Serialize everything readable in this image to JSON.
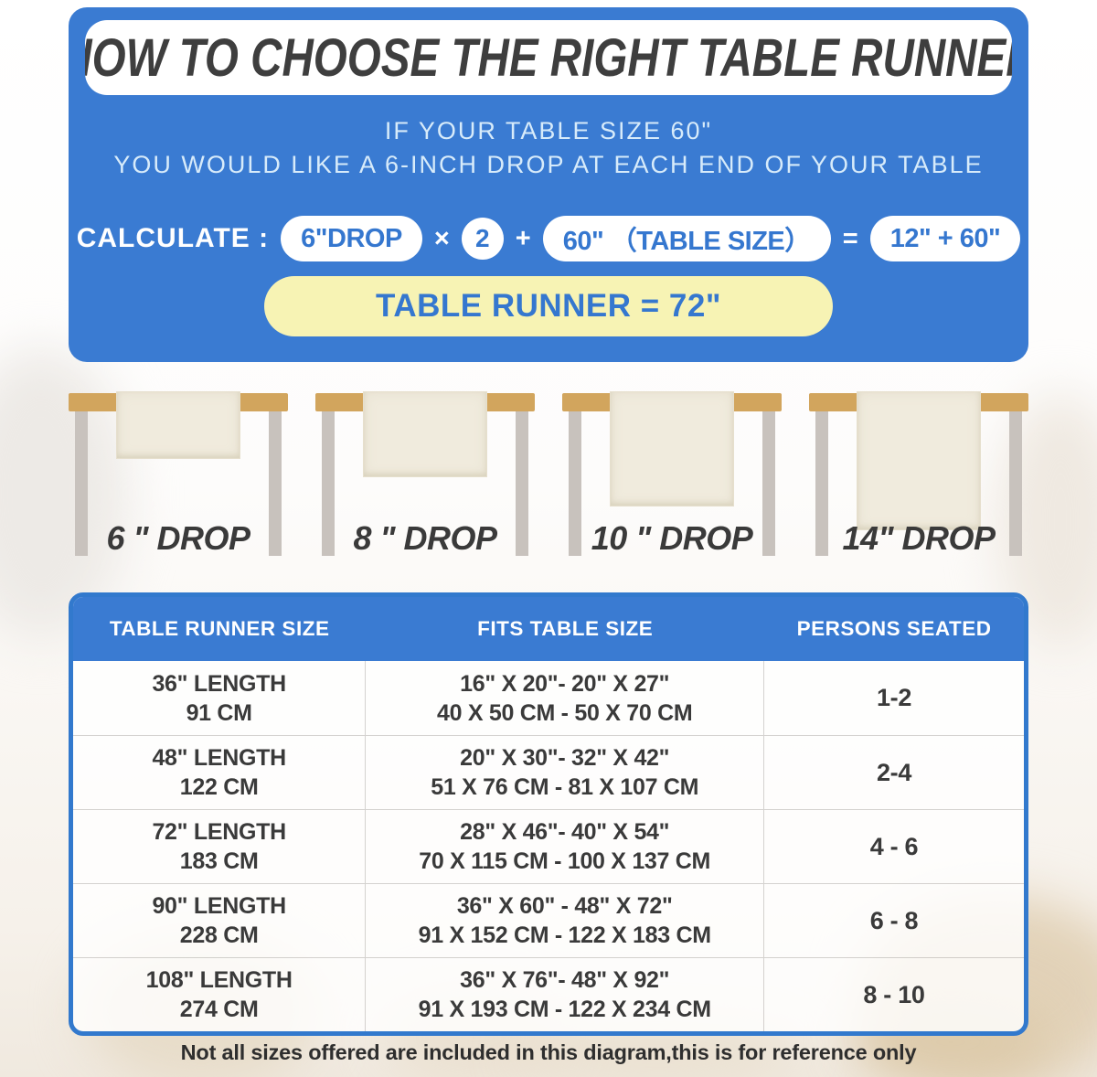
{
  "header": {
    "title": "HOW TO CHOOSE THE RIGHT TABLE RUNNER",
    "subtitle_line1": "IF YOUR TABLE SIZE 60\"",
    "subtitle_line2": "YOU WOULD LIKE A 6-INCH DROP AT EACH END OF YOUR TABLE"
  },
  "calculate": {
    "label": "CALCULATE :",
    "drop_pill": "6\"DROP",
    "times": "×",
    "multiplier": "2",
    "plus": "+",
    "table_size_pill": "60\" （TABLE SIZE）",
    "equals": "=",
    "result_pill": "12\" + 60\"",
    "runner_total": "TABLE RUNNER = 72\""
  },
  "drops": {
    "items": [
      {
        "label": "6 \" DROP",
        "drop_inches": 6
      },
      {
        "label": "8 \" DROP",
        "drop_inches": 8
      },
      {
        "label": "10 \" DROP",
        "drop_inches": 10
      },
      {
        "label": "14\" DROP",
        "drop_inches": 14
      }
    ]
  },
  "size_table": {
    "headers": [
      "TABLE RUNNER SIZE",
      "FITS TABLE SIZE",
      "PERSONS SEATED"
    ],
    "rows": [
      {
        "runner": [
          "36\" LENGTH",
          "91 CM"
        ],
        "fits": [
          "16\" X 20\"- 20\" X 27\"",
          "40 X 50 CM - 50 X 70 CM"
        ],
        "persons": "1-2"
      },
      {
        "runner": [
          "48\" LENGTH",
          "122 CM"
        ],
        "fits": [
          "20\" X 30\"- 32\" X 42\"",
          "51 X 76 CM - 81 X 107 CM"
        ],
        "persons": "2-4"
      },
      {
        "runner": [
          "72\" LENGTH",
          "183 CM"
        ],
        "fits": [
          "28\" X 46\"- 40\" X 54\"",
          "70 X 115 CM - 100 X 137 CM"
        ],
        "persons": "4 - 6"
      },
      {
        "runner": [
          "90\" LENGTH",
          "228 CM"
        ],
        "fits": [
          "36\" X 60\" - 48\" X 72\"",
          "91 X 152 CM - 122 X 183 CM"
        ],
        "persons": "6 - 8"
      },
      {
        "runner": [
          "108\" LENGTH",
          "274 CM"
        ],
        "fits": [
          "36\" X 76\"- 48\" X 92\"",
          "91 X 193 CM - 122 X 234 CM"
        ],
        "persons": "8 - 10"
      }
    ]
  },
  "footnote": "Not all sizes offered are included in this diagram,this is for reference only",
  "colors": {
    "accent_blue": "#3a7bd2",
    "pale_blue_text": "#d7ebfa",
    "highlight_yellow": "#f7f3b4",
    "wood_tan": "#d2a55d",
    "leg_gray": "#c8c2bd",
    "runner_cream": "#f0ebdd",
    "title_dark": "#3e3e3e"
  }
}
